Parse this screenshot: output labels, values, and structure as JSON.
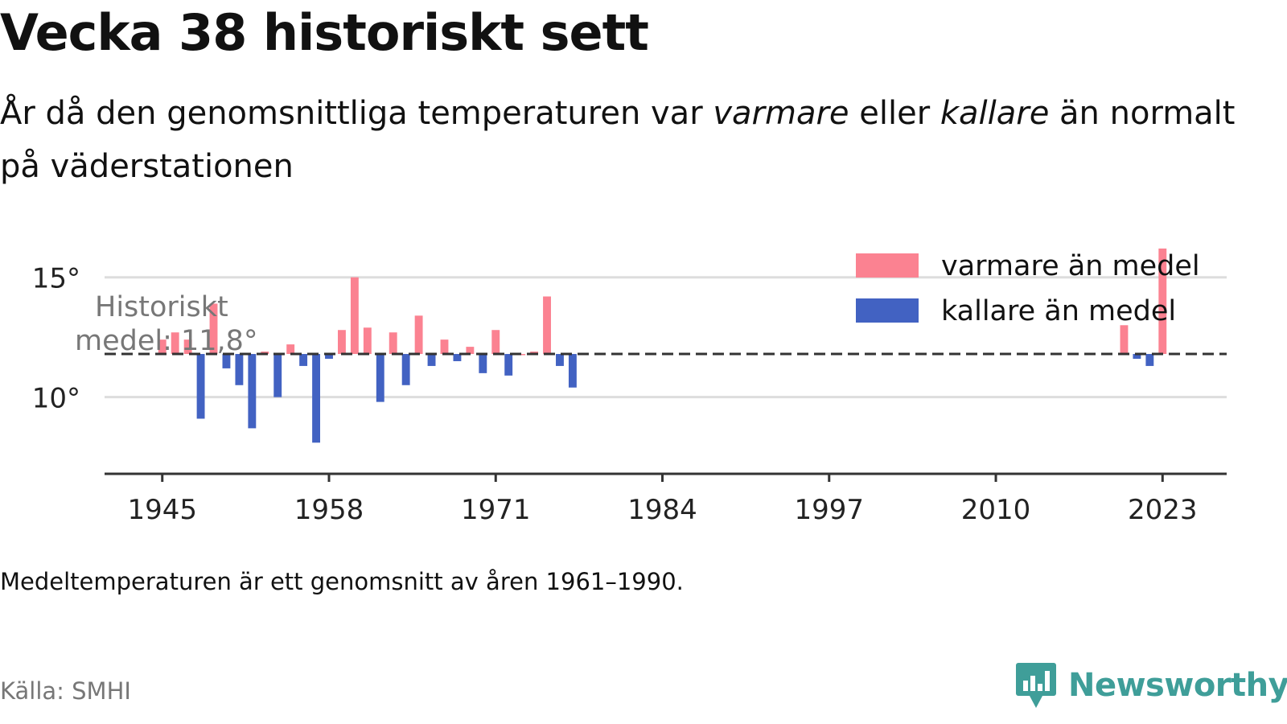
{
  "title": "Vecka 38 historiskt sett",
  "subtitle": {
    "part1": "År då den genomsnittliga temperaturen var ",
    "warm_word": "varmare",
    "part2": " eller ",
    "cold_word": "kallare",
    "part3": " än normalt på väderstationen"
  },
  "note": "Medeltemperaturen är ett genomsnitt av åren 1961–1990.",
  "source": "Källa: SMHI",
  "brand": {
    "name": "Newsworthy",
    "icon": "newsworthy-logo-icon",
    "color": "#3f9e99"
  },
  "colors": {
    "warm": "#fb8291",
    "cold": "#4262c2",
    "grid": "#dddddd",
    "axis": "#333333",
    "mean_line": "#333333"
  },
  "chart_data": {
    "type": "bar",
    "baseline": 11.8,
    "baseline_label": [
      "Historiskt",
      "medel: 11,8°"
    ],
    "xlim": [
      1940.5,
      2028
    ],
    "ylim": [
      6.8,
      16.5
    ],
    "x_ticks": [
      1945,
      1958,
      1971,
      1984,
      1997,
      2010,
      2023
    ],
    "y_ticks": [
      10,
      15
    ],
    "y_tick_labels": [
      "10°",
      "15°"
    ],
    "grid": "horizontal",
    "legend_position": "top-right",
    "legend": [
      {
        "label": "varmare än medel",
        "color": "#fb8291"
      },
      {
        "label": "kallare än medel",
        "color": "#4262c2"
      }
    ],
    "series": [
      {
        "name": "temperatur",
        "x": [
          1945,
          1946,
          1947,
          1948,
          1949,
          1950,
          1951,
          1952,
          1953,
          1954,
          1955,
          1956,
          1957,
          1958,
          1959,
          1960,
          1961,
          1962,
          1963,
          1964,
          1965,
          1966,
          1967,
          1968,
          1969,
          1970,
          1971,
          1972,
          1973,
          1974,
          1975,
          1976,
          1977,
          2020,
          2021,
          2022,
          2023
        ],
        "y": [
          12.4,
          12.7,
          12.4,
          9.1,
          13.9,
          11.2,
          10.5,
          8.7,
          11.9,
          10.0,
          12.2,
          11.3,
          8.1,
          11.6,
          12.8,
          15.0,
          12.9,
          9.8,
          12.7,
          10.5,
          13.4,
          11.3,
          12.4,
          11.5,
          12.1,
          11.0,
          12.8,
          10.9,
          11.8,
          11.9,
          14.2,
          11.3,
          10.4,
          13.0,
          11.6,
          11.3,
          16.2
        ]
      }
    ]
  }
}
